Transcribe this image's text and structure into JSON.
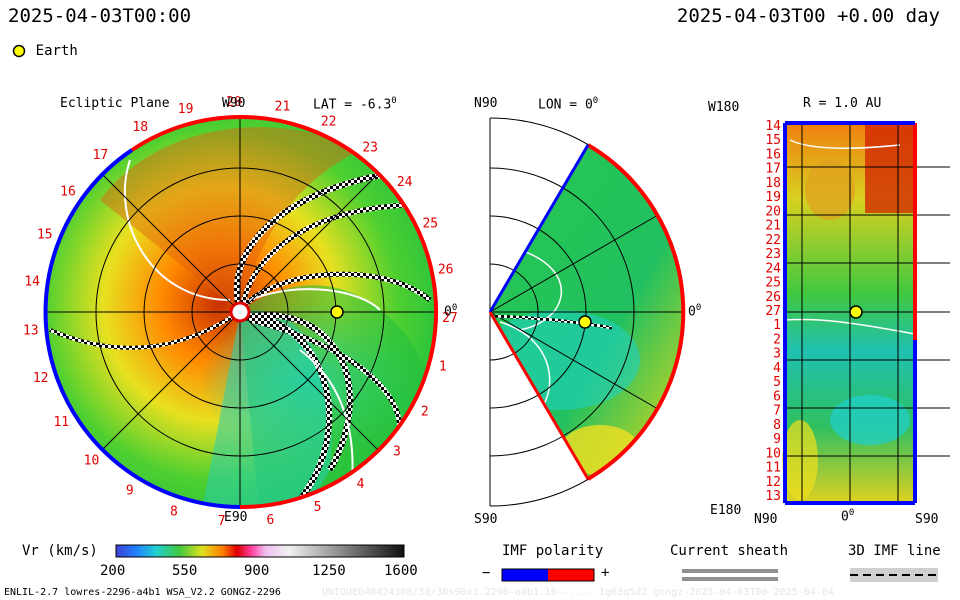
{
  "header": {
    "timestamp_left": "2025-04-03T00:00",
    "timestamp_right": "2025-04-03T00 +0.00 day"
  },
  "legend": {
    "earth_label": "Earth"
  },
  "panels": {
    "ecliptic": {
      "title": "Ecliptic Plane",
      "lat_label": "LAT = -6.3",
      "lat_degree": "0",
      "top_label": "W90",
      "bottom_label": "E90",
      "right_label": "0",
      "right_degree": "0",
      "carrington_labels": [
        "19",
        "20",
        "21",
        "22",
        "23",
        "24",
        "25",
        "26",
        "27",
        "1",
        "2",
        "3",
        "4",
        "5",
        "6",
        "7",
        "8",
        "9",
        "10",
        "11",
        "12",
        "13",
        "14",
        "15",
        "16",
        "17",
        "18"
      ]
    },
    "meridional": {
      "top_label": "N90",
      "bottom_label": "S90",
      "lon_label": "LON = 0",
      "lon_degree": "0",
      "right_label": "0",
      "right_degree": "0"
    },
    "radial": {
      "top_left_label": "W180",
      "bottom_left_label": "E180",
      "r_label": "R = 1.0 AU",
      "x_labels": [
        "N90",
        "0",
        "S90"
      ],
      "x_center_degree": "0",
      "y_labels": [
        "14",
        "15",
        "16",
        "17",
        "18",
        "19",
        "20",
        "21",
        "22",
        "23",
        "24",
        "25",
        "26",
        "27",
        "1",
        "2",
        "3",
        "4",
        "5",
        "6",
        "7",
        "8",
        "9",
        "10",
        "11",
        "12",
        "13"
      ]
    }
  },
  "colorbar": {
    "label": "Vr (km/s)",
    "ticks": [
      "200",
      "550",
      "900",
      "1250",
      "1600"
    ]
  },
  "imf_legend": {
    "title": "IMF polarity",
    "minus": "−",
    "plus": "+"
  },
  "sheath_legend": {
    "title": "Current sheath"
  },
  "imf_line_legend": {
    "title": "3D IMF line"
  },
  "footer": {
    "left_text": "ENLIL-2.7 lowres-2296-a4b1 WSA_V2.2 GONGZ-2296",
    "right_text": "UNIQUE040424308/3d/30x90x1.2296-a4b1.16--...--1g63q5d2.gongz-2025-04-03T00   2025-04-04"
  },
  "colors": {
    "fast_wind": "#e03010",
    "slow_wind": "#22c84a",
    "negative_polarity": "#0000ff",
    "positive_polarity": "#ff0000",
    "earth": "#ffff00"
  }
}
